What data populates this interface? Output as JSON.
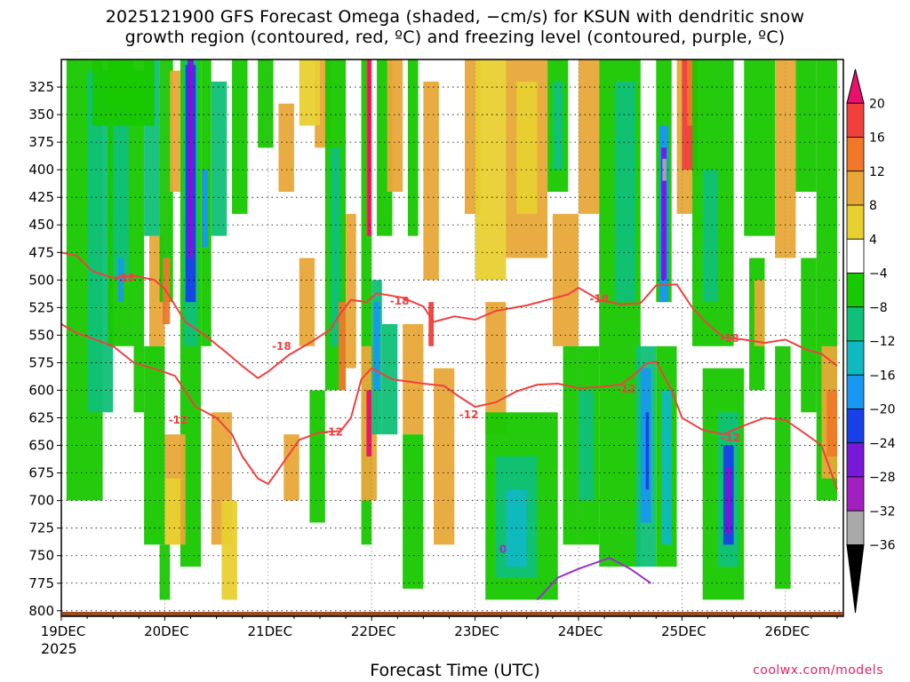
{
  "chart_data": {
    "type": "heatmap",
    "title": "2025121900 GFS Forecast Omega (shaded, −cm/s) for KSUN with dendritic snow\ngrowth region (contoured, red, ºC) and freezing level (contoured, purple, ºC)",
    "xlabel": "Forecast Time (UTC)",
    "x_ticks": [
      "19DEC",
      "20DEC",
      "21DEC",
      "22DEC",
      "23DEC",
      "24DEC",
      "25DEC",
      "26DEC"
    ],
    "x_year": "2025",
    "y_ticks": [
      325,
      350,
      375,
      400,
      425,
      450,
      475,
      500,
      525,
      550,
      575,
      600,
      625,
      650,
      675,
      700,
      725,
      750,
      775,
      800
    ],
    "ylim": [
      300,
      805
    ],
    "xlim_days": [
      0,
      7.5
    ],
    "colorbar": {
      "labels": [
        "20",
        "16",
        "12",
        "8",
        "4",
        "−4",
        "−8",
        "−12",
        "−16",
        "−20",
        "−24",
        "−28",
        "−32",
        "−36"
      ],
      "colors": [
        "#e8106a",
        "#f0403c",
        "#f07828",
        "#e8a838",
        "#e8d030",
        "#ffffff",
        "#18c800",
        "#10c078",
        "#10b8c0",
        "#1898f0",
        "#1840e8",
        "#7818d8",
        "#a020c0",
        "#a8a8a8",
        "#000000"
      ]
    },
    "contours": [
      {
        "label": "-18",
        "color": "#f04040",
        "points": [
          [
            0,
            475
          ],
          [
            0.15,
            478
          ],
          [
            0.3,
            492
          ],
          [
            0.5,
            498
          ],
          [
            0.7,
            496
          ],
          [
            0.9,
            500
          ],
          [
            1.0,
            508
          ],
          [
            1.1,
            523
          ],
          [
            1.2,
            538
          ],
          [
            1.4,
            551
          ],
          [
            1.6,
            566
          ],
          [
            1.75,
            578
          ],
          [
            1.9,
            589
          ],
          [
            2.0,
            583
          ],
          [
            2.2,
            568
          ],
          [
            2.4,
            557
          ],
          [
            2.6,
            545
          ],
          [
            2.7,
            530
          ],
          [
            2.8,
            518
          ],
          [
            2.95,
            520
          ],
          [
            3.05,
            512
          ],
          [
            3.3,
            516
          ],
          [
            3.5,
            524
          ],
          [
            3.6,
            538
          ],
          [
            3.8,
            533
          ],
          [
            4.0,
            536
          ],
          [
            4.2,
            528
          ],
          [
            4.5,
            523
          ],
          [
            4.7,
            518
          ],
          [
            4.9,
            513
          ],
          [
            5.0,
            507
          ],
          [
            5.2,
            518
          ],
          [
            5.4,
            522
          ],
          [
            5.6,
            521
          ],
          [
            5.75,
            505
          ],
          [
            5.95,
            504
          ],
          [
            6.1,
            525
          ],
          [
            6.25,
            540
          ],
          [
            6.4,
            552
          ],
          [
            6.6,
            554
          ],
          [
            6.8,
            557
          ],
          [
            7.0,
            554
          ],
          [
            7.2,
            563
          ],
          [
            7.35,
            567
          ],
          [
            7.5,
            578
          ]
        ]
      },
      {
        "label": "-12",
        "color": "#f04040",
        "points": [
          [
            0,
            540
          ],
          [
            0.15,
            548
          ],
          [
            0.3,
            553
          ],
          [
            0.5,
            560
          ],
          [
            0.7,
            575
          ],
          [
            0.95,
            582
          ],
          [
            1.1,
            587
          ],
          [
            1.3,
            615
          ],
          [
            1.5,
            625
          ],
          [
            1.65,
            640
          ],
          [
            1.75,
            660
          ],
          [
            1.9,
            680
          ],
          [
            2.0,
            685
          ],
          [
            2.15,
            665
          ],
          [
            2.3,
            645
          ],
          [
            2.5,
            638
          ],
          [
            2.7,
            637
          ],
          [
            2.8,
            625
          ],
          [
            2.9,
            590
          ],
          [
            3.0,
            580
          ],
          [
            3.2,
            590
          ],
          [
            3.5,
            594
          ],
          [
            3.7,
            596
          ],
          [
            3.85,
            606
          ],
          [
            4.0,
            615
          ],
          [
            4.2,
            611
          ],
          [
            4.4,
            601
          ],
          [
            4.6,
            595
          ],
          [
            4.8,
            594
          ],
          [
            5.0,
            598
          ],
          [
            5.2,
            597
          ],
          [
            5.4,
            595
          ],
          [
            5.55,
            585
          ],
          [
            5.65,
            576
          ],
          [
            5.75,
            574
          ],
          [
            5.9,
            600
          ],
          [
            6.0,
            625
          ],
          [
            6.2,
            636
          ],
          [
            6.4,
            640
          ],
          [
            6.6,
            632
          ],
          [
            6.8,
            625
          ],
          [
            7.0,
            627
          ],
          [
            7.2,
            640
          ],
          [
            7.35,
            650
          ],
          [
            7.5,
            690
          ]
        ]
      },
      {
        "label": "0",
        "color": "#9b2fc8",
        "points": [
          [
            4.6,
            790
          ],
          [
            4.8,
            770
          ],
          [
            5.0,
            762
          ],
          [
            5.3,
            752
          ],
          [
            5.5,
            762
          ],
          [
            5.7,
            775
          ]
        ]
      }
    ],
    "contour_labels": [
      {
        "text": "-18",
        "day": 0.62,
        "p": 498,
        "color": "#f04040"
      },
      {
        "text": "-18",
        "day": 2.13,
        "p": 560,
        "color": "#f04040"
      },
      {
        "text": "-18",
        "day": 3.27,
        "p": 519,
        "color": "#f04040"
      },
      {
        "text": "-18",
        "day": 5.2,
        "p": 517,
        "color": "#f04040"
      },
      {
        "text": "-18",
        "day": 6.46,
        "p": 553,
        "color": "#f04040"
      },
      {
        "text": "-12",
        "day": 1.13,
        "p": 627,
        "color": "#f04040"
      },
      {
        "text": "-12",
        "day": 2.63,
        "p": 638,
        "color": "#f04040"
      },
      {
        "text": "-12",
        "day": 3.94,
        "p": 622,
        "color": "#f04040"
      },
      {
        "text": "-12",
        "day": 5.46,
        "p": 599,
        "color": "#f04040"
      },
      {
        "text": "-12",
        "day": 6.47,
        "p": 643,
        "color": "#f04040"
      },
      {
        "text": "0",
        "day": 4.27,
        "p": 744,
        "color": "#9b2fc8"
      }
    ],
    "omega_cells": [
      {
        "d0": 0.05,
        "d1": 0.4,
        "p0": 300,
        "p1": 700,
        "lvl": 6
      },
      {
        "d0": 0.25,
        "d1": 0.5,
        "p0": 310,
        "p1": 620,
        "lvl": 7
      },
      {
        "d0": 0.45,
        "d1": 0.7,
        "p0": 300,
        "p1": 560,
        "lvl": 6
      },
      {
        "d0": 0.5,
        "d1": 0.65,
        "p0": 340,
        "p1": 500,
        "lvl": 7
      },
      {
        "d0": 0.55,
        "d1": 0.6,
        "p0": 480,
        "p1": 520,
        "lvl": 9
      },
      {
        "d0": 0.7,
        "d1": 0.8,
        "p0": 310,
        "p1": 620,
        "lvl": 6
      },
      {
        "d0": 0.85,
        "d1": 1.0,
        "p0": 460,
        "p1": 560,
        "lvl": 3
      },
      {
        "d0": 0.8,
        "d1": 1.0,
        "p0": 560,
        "p1": 740,
        "lvl": 6
      },
      {
        "d0": 0.8,
        "d1": 0.95,
        "p0": 300,
        "p1": 460,
        "lvl": 7
      },
      {
        "d0": 0.95,
        "d1": 1.08,
        "p0": 300,
        "p1": 520,
        "lvl": 6
      },
      {
        "d0": 0.98,
        "d1": 1.05,
        "p0": 480,
        "p1": 540,
        "lvl": 2
      },
      {
        "d0": 1.15,
        "d1": 1.35,
        "p0": 300,
        "p1": 760,
        "lvl": 6
      },
      {
        "d0": 1.18,
        "d1": 1.32,
        "p0": 300,
        "p1": 560,
        "lvl": 7
      },
      {
        "d0": 1.2,
        "d1": 1.3,
        "p0": 305,
        "p1": 520,
        "lvl": 10
      },
      {
        "d0": 1.22,
        "d1": 1.28,
        "p0": 300,
        "p1": 480,
        "lvl": 11
      },
      {
        "d0": 1.05,
        "d1": 1.15,
        "p0": 310,
        "p1": 420,
        "lvl": 3
      },
      {
        "d0": 1.35,
        "d1": 1.45,
        "p0": 300,
        "p1": 560,
        "lvl": 6
      },
      {
        "d0": 1.36,
        "d1": 1.42,
        "p0": 400,
        "p1": 470,
        "lvl": 9
      },
      {
        "d0": 1.45,
        "d1": 1.6,
        "p0": 320,
        "p1": 460,
        "lvl": 7
      },
      {
        "d0": 1.45,
        "d1": 1.65,
        "p0": 620,
        "p1": 740,
        "lvl": 3
      },
      {
        "d0": 1.55,
        "d1": 1.7,
        "p0": 700,
        "p1": 790,
        "lvl": 4
      },
      {
        "d0": 1.0,
        "d1": 1.2,
        "p0": 640,
        "p1": 740,
        "lvl": 3
      },
      {
        "d0": 1.0,
        "d1": 1.15,
        "p0": 680,
        "p1": 740,
        "lvl": 4
      },
      {
        "d0": 0.95,
        "d1": 1.05,
        "p0": 740,
        "p1": 790,
        "lvl": 6
      },
      {
        "d0": 1.65,
        "d1": 1.8,
        "p0": 300,
        "p1": 440,
        "lvl": 6
      },
      {
        "d0": 1.9,
        "d1": 2.05,
        "p0": 300,
        "p1": 380,
        "lvl": 6
      },
      {
        "d0": 2.1,
        "d1": 2.25,
        "p0": 340,
        "p1": 420,
        "lvl": 3
      },
      {
        "d0": 2.45,
        "d1": 2.6,
        "p0": 300,
        "p1": 380,
        "lvl": 3
      },
      {
        "d0": 2.3,
        "d1": 2.45,
        "p0": 480,
        "p1": 560,
        "lvl": 3
      },
      {
        "d0": 2.15,
        "d1": 2.3,
        "p0": 640,
        "p1": 700,
        "lvl": 3
      },
      {
        "d0": 2.4,
        "d1": 2.55,
        "p0": 600,
        "p1": 720,
        "lvl": 6
      },
      {
        "d0": 2.55,
        "d1": 2.75,
        "p0": 300,
        "p1": 600,
        "lvl": 6
      },
      {
        "d0": 2.6,
        "d1": 2.7,
        "p0": 380,
        "p1": 560,
        "lvl": 7
      },
      {
        "d0": 2.75,
        "d1": 2.85,
        "p0": 440,
        "p1": 580,
        "lvl": 3
      },
      {
        "d0": 2.68,
        "d1": 2.75,
        "p0": 520,
        "p1": 600,
        "lvl": 2
      },
      {
        "d0": 2.9,
        "d1": 3.0,
        "p0": 300,
        "p1": 740,
        "lvl": 6
      },
      {
        "d0": 2.95,
        "d1": 3.0,
        "p0": 300,
        "p1": 460,
        "lvl": 1
      },
      {
        "d0": 2.96,
        "d1": 2.99,
        "p0": 300,
        "p1": 460,
        "lvl": 0
      },
      {
        "d0": 2.9,
        "d1": 3.05,
        "p0": 560,
        "p1": 700,
        "lvl": 3
      },
      {
        "d0": 2.95,
        "d1": 3.0,
        "p0": 600,
        "p1": 660,
        "lvl": 0
      },
      {
        "d0": 3.0,
        "d1": 3.1,
        "p0": 500,
        "p1": 640,
        "lvl": 7
      },
      {
        "d0": 3.02,
        "d1": 3.08,
        "p0": 520,
        "p1": 600,
        "lvl": 9
      },
      {
        "d0": 3.05,
        "d1": 3.2,
        "p0": 300,
        "p1": 460,
        "lvl": 6
      },
      {
        "d0": 3.1,
        "d1": 3.25,
        "p0": 540,
        "p1": 640,
        "lvl": 7
      },
      {
        "d0": 3.15,
        "d1": 3.3,
        "p0": 300,
        "p1": 420,
        "lvl": 3
      },
      {
        "d0": 3.3,
        "d1": 3.5,
        "p0": 540,
        "p1": 640,
        "lvl": 3
      },
      {
        "d0": 3.3,
        "d1": 3.5,
        "p0": 640,
        "p1": 780,
        "lvl": 6
      },
      {
        "d0": 3.35,
        "d1": 3.45,
        "p0": 300,
        "p1": 460,
        "lvl": 6
      },
      {
        "d0": 3.5,
        "d1": 3.65,
        "p0": 320,
        "p1": 500,
        "lvl": 3
      },
      {
        "d0": 3.55,
        "d1": 3.6,
        "p0": 520,
        "p1": 560,
        "lvl": 1
      },
      {
        "d0": 3.6,
        "d1": 3.8,
        "p0": 580,
        "p1": 740,
        "lvl": 3
      },
      {
        "d0": 3.9,
        "d1": 4.05,
        "p0": 300,
        "p1": 440,
        "lvl": 3
      },
      {
        "d0": 4.0,
        "d1": 4.3,
        "p0": 300,
        "p1": 500,
        "lvl": 4
      },
      {
        "d0": 4.1,
        "d1": 4.3,
        "p0": 520,
        "p1": 640,
        "lvl": 3
      },
      {
        "d0": 4.1,
        "d1": 4.8,
        "p0": 620,
        "p1": 790,
        "lvl": 6
      },
      {
        "d0": 4.2,
        "d1": 4.6,
        "p0": 660,
        "p1": 770,
        "lvl": 7
      },
      {
        "d0": 4.3,
        "d1": 4.5,
        "p0": 690,
        "p1": 760,
        "lvl": 8
      },
      {
        "d0": 4.3,
        "d1": 4.7,
        "p0": 300,
        "p1": 480,
        "lvl": 3
      },
      {
        "d0": 4.4,
        "d1": 4.6,
        "p0": 320,
        "p1": 440,
        "lvl": 4
      },
      {
        "d0": 4.7,
        "d1": 4.9,
        "p0": 300,
        "p1": 420,
        "lvl": 6
      },
      {
        "d0": 4.75,
        "d1": 4.85,
        "p0": 320,
        "p1": 400,
        "lvl": 7
      },
      {
        "d0": 4.75,
        "d1": 5.0,
        "p0": 440,
        "p1": 560,
        "lvl": 3
      },
      {
        "d0": 4.85,
        "d1": 5.2,
        "p0": 560,
        "p1": 740,
        "lvl": 6
      },
      {
        "d0": 5.0,
        "d1": 5.15,
        "p0": 600,
        "p1": 700,
        "lvl": 7
      },
      {
        "d0": 5.0,
        "d1": 5.2,
        "p0": 300,
        "p1": 440,
        "lvl": 3
      },
      {
        "d0": 5.2,
        "d1": 5.6,
        "p0": 300,
        "p1": 760,
        "lvl": 6
      },
      {
        "d0": 5.35,
        "d1": 5.55,
        "p0": 320,
        "p1": 520,
        "lvl": 7
      },
      {
        "d0": 5.55,
        "d1": 5.75,
        "p0": 560,
        "p1": 760,
        "lvl": 7
      },
      {
        "d0": 5.6,
        "d1": 5.7,
        "p0": 580,
        "p1": 720,
        "lvl": 9
      },
      {
        "d0": 5.65,
        "d1": 5.68,
        "p0": 620,
        "p1": 690,
        "lvl": 10
      },
      {
        "d0": 5.75,
        "d1": 5.9,
        "p0": 300,
        "p1": 520,
        "lvl": 6
      },
      {
        "d0": 5.78,
        "d1": 5.87,
        "p0": 360,
        "p1": 520,
        "lvl": 9
      },
      {
        "d0": 5.8,
        "d1": 5.85,
        "p0": 380,
        "p1": 500,
        "lvl": 11
      },
      {
        "d0": 5.81,
        "d1": 5.85,
        "p0": 390,
        "p1": 410,
        "lvl": 13
      },
      {
        "d0": 5.75,
        "d1": 5.95,
        "p0": 560,
        "p1": 760,
        "lvl": 6
      },
      {
        "d0": 5.8,
        "d1": 5.9,
        "p0": 600,
        "p1": 740,
        "lvl": 8
      },
      {
        "d0": 5.95,
        "d1": 6.1,
        "p0": 300,
        "p1": 440,
        "lvl": 3
      },
      {
        "d0": 6.0,
        "d1": 6.15,
        "p0": 300,
        "p1": 400,
        "lvl": 1
      },
      {
        "d0": 6.05,
        "d1": 6.12,
        "p0": 300,
        "p1": 360,
        "lvl": 2
      },
      {
        "d0": 6.1,
        "d1": 6.5,
        "p0": 300,
        "p1": 560,
        "lvl": 6
      },
      {
        "d0": 6.2,
        "d1": 6.35,
        "p0": 400,
        "p1": 520,
        "lvl": 7
      },
      {
        "d0": 6.2,
        "d1": 6.6,
        "p0": 580,
        "p1": 790,
        "lvl": 6
      },
      {
        "d0": 6.35,
        "d1": 6.55,
        "p0": 620,
        "p1": 760,
        "lvl": 7
      },
      {
        "d0": 6.4,
        "d1": 6.5,
        "p0": 650,
        "p1": 740,
        "lvl": 10
      },
      {
        "d0": 6.42,
        "d1": 6.48,
        "p0": 670,
        "p1": 730,
        "lvl": 11
      },
      {
        "d0": 6.6,
        "d1": 6.9,
        "p0": 300,
        "p1": 460,
        "lvl": 6
      },
      {
        "d0": 6.65,
        "d1": 6.8,
        "p0": 480,
        "p1": 600,
        "lvl": 6
      },
      {
        "d0": 6.7,
        "d1": 6.8,
        "p0": 500,
        "p1": 560,
        "lvl": 3
      },
      {
        "d0": 6.9,
        "d1": 7.1,
        "p0": 300,
        "p1": 480,
        "lvl": 3
      },
      {
        "d0": 6.9,
        "d1": 7.05,
        "p0": 560,
        "p1": 780,
        "lvl": 6
      },
      {
        "d0": 7.1,
        "d1": 7.3,
        "p0": 300,
        "p1": 420,
        "lvl": 6
      },
      {
        "d0": 7.15,
        "d1": 7.3,
        "p0": 480,
        "p1": 620,
        "lvl": 6
      },
      {
        "d0": 7.3,
        "d1": 7.5,
        "p0": 300,
        "p1": 700,
        "lvl": 6
      },
      {
        "d0": 7.35,
        "d1": 7.5,
        "p0": 560,
        "p1": 680,
        "lvl": 3
      },
      {
        "d0": 7.4,
        "d1": 7.5,
        "p0": 600,
        "p1": 660,
        "lvl": 2
      },
      {
        "d0": 0.3,
        "d1": 0.9,
        "p0": 300,
        "p1": 360,
        "lvl": 6
      },
      {
        "d0": 2.3,
        "d1": 2.5,
        "p0": 300,
        "p1": 360,
        "lvl": 4
      }
    ]
  },
  "x_label": "Forecast Time (UTC)",
  "credit": "coolwx.com/models"
}
